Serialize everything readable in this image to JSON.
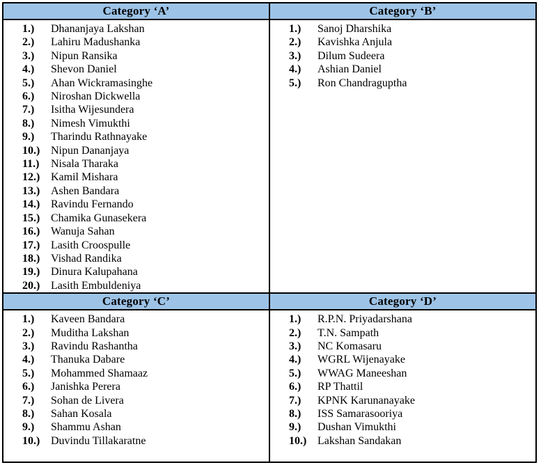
{
  "sections": [
    {
      "header": "Category ‘A’",
      "items": [
        {
          "num": "1.)",
          "name": "Dhananjaya Lakshan"
        },
        {
          "num": "2.)",
          "name": "Lahiru Madushanka"
        },
        {
          "num": "3.)",
          "name": "Nipun Ransika"
        },
        {
          "num": "4.)",
          "name": "Shevon Daniel"
        },
        {
          "num": "5.)",
          "name": "Ahan Wickramasinghe"
        },
        {
          "num": "6.)",
          "name": "Niroshan Dickwella"
        },
        {
          "num": "7.)",
          "name": "Isitha Wijesundera"
        },
        {
          "num": "8.)",
          "name": "Nimesh Vimukthi"
        },
        {
          "num": "9.)",
          "name": "Tharindu Rathnayake"
        },
        {
          "num": "10.)",
          "name": "Nipun Dananjaya"
        },
        {
          "num": "11.)",
          "name": "Nisala Tharaka"
        },
        {
          "num": "12.)",
          "name": "Kamil Mishara"
        },
        {
          "num": "13.)",
          "name": "Ashen Bandara"
        },
        {
          "num": "14.)",
          "name": "Ravindu Fernando"
        },
        {
          "num": "15.)",
          "name": "Chamika Gunasekera"
        },
        {
          "num": "16.)",
          "name": "Wanuja Sahan"
        },
        {
          "num": "17.)",
          "name": "Lasith Croospulle"
        },
        {
          "num": "18.)",
          "name": "Vishad Randika"
        },
        {
          "num": "19.)",
          "name": "Dinura Kalupahana"
        },
        {
          "num": "20.)",
          "name": "Lasith Embuldeniya"
        }
      ]
    },
    {
      "header": "Category ‘B’",
      "items": [
        {
          "num": "1.)",
          "name": "Sanoj Dharshika"
        },
        {
          "num": "2.)",
          "name": "Kavishka Anjula"
        },
        {
          "num": "3.)",
          "name": "Dilum Sudeera"
        },
        {
          "num": "4.)",
          "name": "Ashian Daniel"
        },
        {
          "num": "5.)",
          "name": "Ron Chandraguptha"
        }
      ]
    },
    {
      "header": "Category ‘C’",
      "items": [
        {
          "num": "1.)",
          "name": "Kaveen Bandara"
        },
        {
          "num": "2.)",
          "name": "Muditha Lakshan"
        },
        {
          "num": "3.)",
          "name": "Ravindu Rashantha"
        },
        {
          "num": "4.)",
          "name": "Thanuka Dabare"
        },
        {
          "num": "5.)",
          "name": "Mohammed Shamaaz"
        },
        {
          "num": "6.)",
          "name": "Janishka Perera"
        },
        {
          "num": "7.)",
          "name": "Sohan de Livera"
        },
        {
          "num": "8.)",
          "name": "Sahan Kosala"
        },
        {
          "num": "9.)",
          "name": "Shammu Ashan"
        },
        {
          "num": "10.)",
          "name": "Duvindu Tillakaratne"
        }
      ]
    },
    {
      "header": "Category ‘D’",
      "items": [
        {
          "num": "1.)",
          "name": "R.P.N. Priyadarshana"
        },
        {
          "num": "2.)",
          "name": "T.N. Sampath"
        },
        {
          "num": "3.)",
          "name": "NC Komasaru"
        },
        {
          "num": "4.)",
          "name": "WGRL Wijenayake"
        },
        {
          "num": "5.)",
          "name": "WWAG Maneeshan"
        },
        {
          "num": "6.)",
          "name": "RP Thattil"
        },
        {
          "num": "7.)",
          "name": "KPNK Karunanayake"
        },
        {
          "num": "8.)",
          "name": "ISS Samarasooriya"
        },
        {
          "num": "9.)",
          "name": "Dushan Vimukthi"
        },
        {
          "num": "10.)",
          "name": "Lakshan Sandakan"
        }
      ]
    }
  ],
  "colors": {
    "header_bg": "#9DC3E6",
    "border": "#000000"
  }
}
